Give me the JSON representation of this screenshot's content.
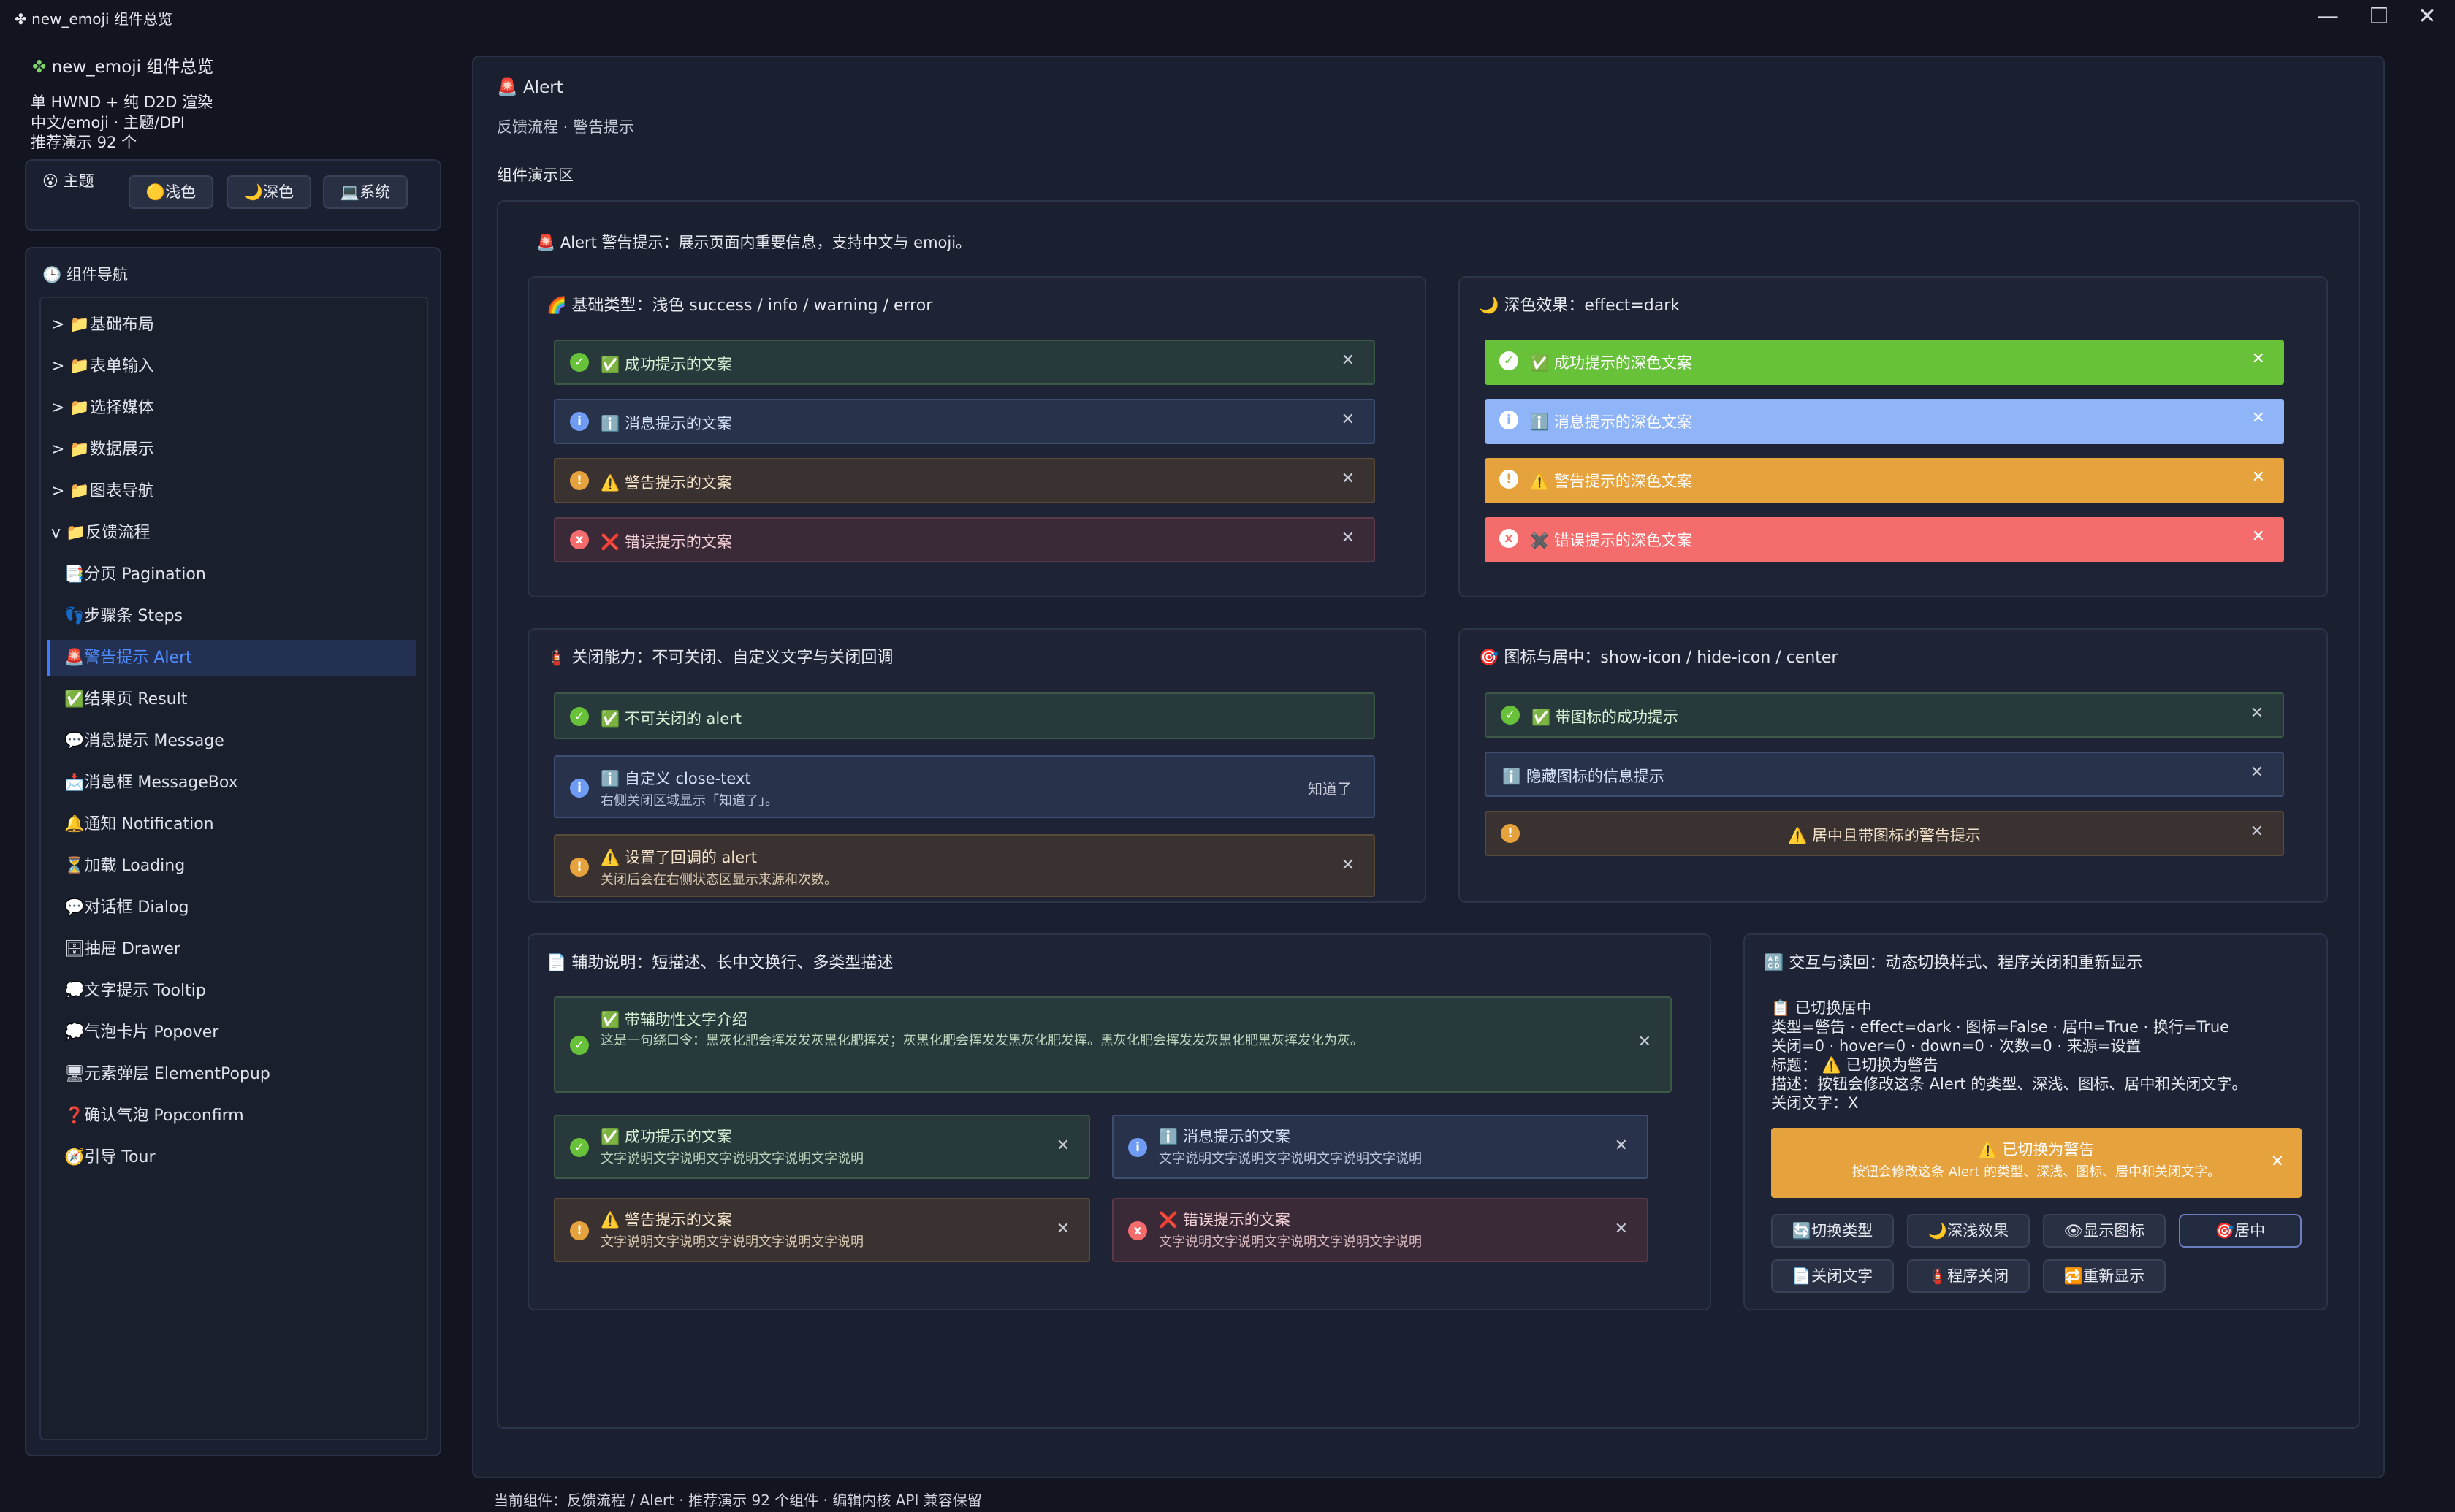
{
  "window": {
    "title": "new_emoji 组件总览",
    "icon": "✤",
    "controls": {
      "minimize": "—",
      "maximize": "☐",
      "close": "✕"
    }
  },
  "sidebar": {
    "app_title": "new_emoji 组件总览",
    "app_icon": "✤",
    "info_lines": [
      "单 HWND + 纯 D2D 渲染",
      "中文/emoji · 主题/DPI",
      "推荐演示 92 个"
    ],
    "theme": {
      "label": "主题",
      "icon": "😮",
      "buttons": [
        "🟡浅色",
        "🌙深色",
        "💻系统"
      ]
    },
    "nav": {
      "label": "组件导航",
      "icon": "🕒",
      "groups": [
        "> 📁基础布局",
        "> 📁表单输入",
        "> 📁选择媒体",
        "> 📁数据展示",
        "> 📁图表导航",
        "v 📁反馈流程"
      ],
      "items": [
        "📑分页 Pagination",
        "👣步骤条 Steps",
        "🚨警告提示 Alert",
        "✅结果页 Result",
        "💬消息提示 Message",
        "📩消息框 MessageBox",
        "🔔通知 Notification",
        "⏳加载 Loading",
        "💬对话框 Dialog",
        "🗄抽屉 Drawer",
        "💭文字提示 Tooltip",
        "💭气泡卡片 Popover",
        "🖥元素弹层 ElementPopup",
        "❓确认气泡 Popconfirm",
        "🧭引导 Tour"
      ],
      "selected_index": 2
    }
  },
  "main": {
    "title": "🚨 Alert",
    "subtitle": "反馈流程 · 警告提示",
    "demo_label": "组件演示区",
    "intro": "🚨 Alert 警告提示：展示页面内重要信息，支持中文与 emoji。",
    "basic": {
      "title": "🌈 基础类型：浅色 success / info / warning / error",
      "alerts": [
        {
          "icon": "✓",
          "text": "✅ 成功提示的文案",
          "close": "✕"
        },
        {
          "icon": "i",
          "text": "ℹ️ 消息提示的文案",
          "close": "✕"
        },
        {
          "icon": "!",
          "text": "⚠️ 警告提示的文案",
          "close": "✕"
        },
        {
          "icon": "x",
          "text": "❌ 错误提示的文案",
          "close": "✕"
        }
      ]
    },
    "dark": {
      "title": "🌙 深色效果：effect=dark",
      "alerts": [
        {
          "icon": "✓",
          "text": "✅ 成功提示的深色文案",
          "close": "✕"
        },
        {
          "icon": "i",
          "text": "ℹ️ 消息提示的深色文案",
          "close": "✕"
        },
        {
          "icon": "!",
          "text": "⚠️ 警告提示的深色文案",
          "close": "✕"
        },
        {
          "icon": "x",
          "text": "✖️ 错误提示的深色文案",
          "close": "✕"
        }
      ]
    },
    "closable": {
      "title": "🧯 关闭能力：不可关闭、自定义文字与关闭回调",
      "alerts": [
        {
          "icon": "✓",
          "text": "✅ 不可关闭的 alert"
        },
        {
          "icon": "i",
          "text": "ℹ️ 自定义 close-text",
          "desc": "右侧关闭区域显示「知道了」。",
          "close": "知道了"
        },
        {
          "icon": "!",
          "text": "⚠️ 设置了回调的 alert",
          "desc": "关闭后会在右侧状态区显示来源和次数。",
          "close": "✕"
        }
      ]
    },
    "icon_center": {
      "title": "🎯 图标与居中：show-icon / hide-icon / center",
      "alerts": [
        {
          "icon": "✓",
          "text": "✅ 带图标的成功提示",
          "close": "✕"
        },
        {
          "text": "ℹ️ 隐藏图标的信息提示",
          "close": "✕"
        },
        {
          "icon": "!",
          "text": "⚠️ 居中且带图标的警告提示",
          "close": "✕"
        }
      ]
    },
    "desc": {
      "title": "📄 辅助说明：短描述、长中文换行、多类型描述",
      "long": {
        "icon": "✓",
        "text": "✅ 带辅助性文字介绍",
        "desc": "这是一句绕口令：黑灰化肥会挥发发灰黑化肥挥发；灰黑化肥会挥发发黑灰化肥发挥。黑灰化肥会挥发发灰黑化肥黑灰挥发化为灰。",
        "close": "✕"
      },
      "grid": [
        {
          "icon": "✓",
          "text": "✅ 成功提示的文案",
          "desc": "文字说明文字说明文字说明文字说明文字说明",
          "close": "✕"
        },
        {
          "icon": "i",
          "text": "ℹ️ 消息提示的文案",
          "desc": "文字说明文字说明文字说明文字说明文字说明",
          "close": "✕"
        },
        {
          "icon": "!",
          "text": "⚠️ 警告提示的文案",
          "desc": "文字说明文字说明文字说明文字说明文字说明",
          "close": "✕"
        },
        {
          "icon": "x",
          "text": "❌ 错误提示的文案",
          "desc": "文字说明文字说明文字说明文字说明文字说明",
          "close": "✕"
        }
      ]
    },
    "interact": {
      "title": "🔠 交互与读回：动态切换样式、程序关闭和重新显示",
      "status_lines": [
        "📋 已切换居中",
        "类型=警告 · effect=dark · 图标=False · 居中=True · 换行=True",
        "关闭=0 · hover=0 · down=0 · 次数=0 · 来源=设置",
        "标题：  ⚠️ 已切换为警告",
        "描述：按钮会修改这条 Alert 的类型、深浅、图标、居中和关闭文字。",
        "关闭文字：X"
      ],
      "preview": {
        "text": "⚠️ 已切换为警告",
        "desc": "按钮会修改这条 Alert 的类型、深浅、图标、居中和关闭文字。",
        "close": "✕"
      },
      "buttons": [
        "🔄切换类型",
        "🌙深浅效果",
        "👁显示图标",
        "🎯居中",
        "📄关闭文字",
        "🧯程序关闭",
        "🔁重新显示"
      ]
    },
    "footer": "当前组件：反馈流程 / Alert · 推荐演示 92 个组件 · 编辑内核 API 兼容保留"
  }
}
